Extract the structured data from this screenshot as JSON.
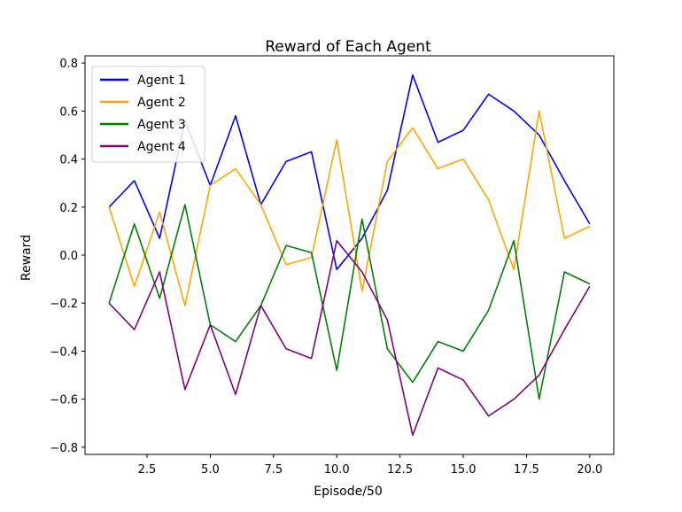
{
  "chart_data": {
    "type": "line",
    "title": "Reward of Each Agent",
    "xlabel": "Episode/50",
    "ylabel": "Reward",
    "xlim": [
      0.05,
      20.95
    ],
    "ylim": [
      -0.83,
      0.83
    ],
    "xticks": [
      2.5,
      5.0,
      7.5,
      10.0,
      12.5,
      15.0,
      17.5,
      20.0
    ],
    "xtick_labels": [
      "2.5",
      "5.0",
      "7.5",
      "10.0",
      "12.5",
      "15.0",
      "17.5",
      "20.0"
    ],
    "yticks": [
      -0.8,
      -0.6,
      -0.4,
      -0.2,
      0.0,
      0.2,
      0.4,
      0.6,
      0.8
    ],
    "ytick_labels": [
      "−0.8",
      "−0.6",
      "−0.4",
      "−0.2",
      "0.0",
      "0.2",
      "0.4",
      "0.6",
      "0.8"
    ],
    "grid": false,
    "legend_position": "top-left",
    "x": [
      1,
      2,
      3,
      4,
      5,
      6,
      7,
      8,
      9,
      10,
      11,
      12,
      13,
      14,
      15,
      16,
      17,
      18,
      19,
      20
    ],
    "series": [
      {
        "name": "Agent 1",
        "color": "#0000ff",
        "values": [
          0.2,
          0.31,
          0.07,
          0.56,
          0.29,
          0.58,
          0.21,
          0.39,
          0.43,
          -0.06,
          0.07,
          0.27,
          0.75,
          0.47,
          0.52,
          0.67,
          0.6,
          0.5,
          0.31,
          0.13
        ]
      },
      {
        "name": "Agent 2",
        "color": "#ffa500",
        "values": [
          0.2,
          -0.13,
          0.18,
          -0.21,
          0.29,
          0.36,
          0.21,
          -0.04,
          -0.01,
          0.48,
          -0.15,
          0.39,
          0.53,
          0.36,
          0.4,
          0.23,
          -0.06,
          0.6,
          0.07,
          0.12
        ]
      },
      {
        "name": "Agent 3",
        "color": "#008000",
        "values": [
          -0.2,
          0.13,
          -0.18,
          0.21,
          -0.29,
          -0.36,
          -0.21,
          0.04,
          0.01,
          -0.48,
          0.15,
          -0.39,
          -0.53,
          -0.36,
          -0.4,
          -0.23,
          0.06,
          -0.6,
          -0.07,
          -0.12
        ]
      },
      {
        "name": "Agent 4",
        "color": "#800080",
        "values": [
          -0.2,
          -0.31,
          -0.07,
          -0.56,
          -0.29,
          -0.58,
          -0.21,
          -0.39,
          -0.43,
          0.06,
          -0.07,
          -0.27,
          -0.75,
          -0.47,
          -0.52,
          -0.67,
          -0.6,
          -0.5,
          -0.31,
          -0.13
        ]
      }
    ]
  }
}
